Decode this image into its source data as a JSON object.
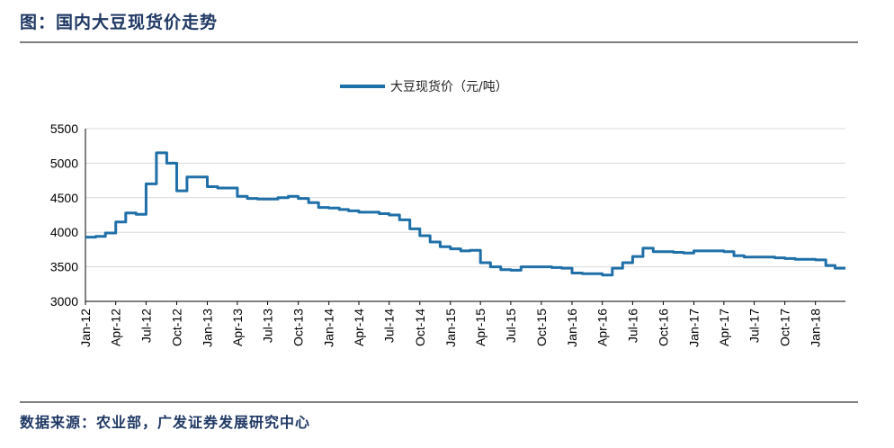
{
  "header": {
    "title": "图：国内大豆现货价走势"
  },
  "footer": {
    "source": "数据来源：农业部，广发证券发展研究中心"
  },
  "colors": {
    "series": "#1f6fa8",
    "rules": "#7f7f7f",
    "grid": "#d9d9d9",
    "text": "#1f3864"
  },
  "chart_data": {
    "type": "line",
    "title": "",
    "xlabel": "",
    "ylabel": "",
    "ylim": [
      3000,
      5500
    ],
    "y_ticks": [
      "3000",
      "3500",
      "4000",
      "4500",
      "5000",
      "5500"
    ],
    "x_ticks": [
      "Jan-12",
      "Apr-12",
      "Jul-12",
      "Oct-12",
      "Jan-13",
      "Apr-13",
      "Jul-13",
      "Oct-13",
      "Jan-14",
      "Apr-14",
      "Jul-14",
      "Oct-14",
      "Jan-15",
      "Apr-15",
      "Jul-15",
      "Oct-15",
      "Jan-16",
      "Apr-16",
      "Jul-16",
      "Oct-16",
      "Jan-17",
      "Apr-17",
      "Jul-17",
      "Oct-17",
      "Jan-18"
    ],
    "grid": true,
    "legend_position": "top-center",
    "series": [
      {
        "name": "大豆现货价（元/吨）",
        "x": [
          "2012-01",
          "2012-02",
          "2012-03",
          "2012-04",
          "2012-05",
          "2012-06",
          "2012-07",
          "2012-08",
          "2012-09",
          "2012-10",
          "2012-11",
          "2012-12",
          "2013-01",
          "2013-02",
          "2013-03",
          "2013-04",
          "2013-05",
          "2013-06",
          "2013-07",
          "2013-08",
          "2013-09",
          "2013-10",
          "2013-11",
          "2013-12",
          "2014-01",
          "2014-02",
          "2014-03",
          "2014-04",
          "2014-05",
          "2014-06",
          "2014-07",
          "2014-08",
          "2014-09",
          "2014-10",
          "2014-11",
          "2014-12",
          "2015-01",
          "2015-02",
          "2015-03",
          "2015-04",
          "2015-05",
          "2015-06",
          "2015-07",
          "2015-08",
          "2015-09",
          "2015-10",
          "2015-11",
          "2015-12",
          "2016-01",
          "2016-02",
          "2016-03",
          "2016-04",
          "2016-05",
          "2016-06",
          "2016-07",
          "2016-08",
          "2016-09",
          "2016-10",
          "2016-11",
          "2016-12",
          "2017-01",
          "2017-02",
          "2017-03",
          "2017-04",
          "2017-05",
          "2017-06",
          "2017-07",
          "2017-08",
          "2017-09",
          "2017-10",
          "2017-11",
          "2017-12",
          "2018-01",
          "2018-02",
          "2018-03"
        ],
        "values": [
          3930,
          3940,
          3990,
          4150,
          4280,
          4260,
          4700,
          5150,
          5000,
          4600,
          4800,
          4800,
          4660,
          4640,
          4640,
          4520,
          4490,
          4480,
          4480,
          4500,
          4520,
          4490,
          4430,
          4360,
          4350,
          4330,
          4310,
          4290,
          4290,
          4270,
          4250,
          4180,
          4050,
          3950,
          3860,
          3790,
          3760,
          3730,
          3740,
          3560,
          3500,
          3460,
          3450,
          3500,
          3500,
          3500,
          3490,
          3480,
          3410,
          3400,
          3400,
          3380,
          3480,
          3560,
          3650,
          3770,
          3720,
          3720,
          3710,
          3700,
          3730,
          3730,
          3730,
          3720,
          3660,
          3640,
          3640,
          3640,
          3630,
          3620,
          3610,
          3610,
          3600,
          3520,
          3480
        ]
      }
    ]
  }
}
